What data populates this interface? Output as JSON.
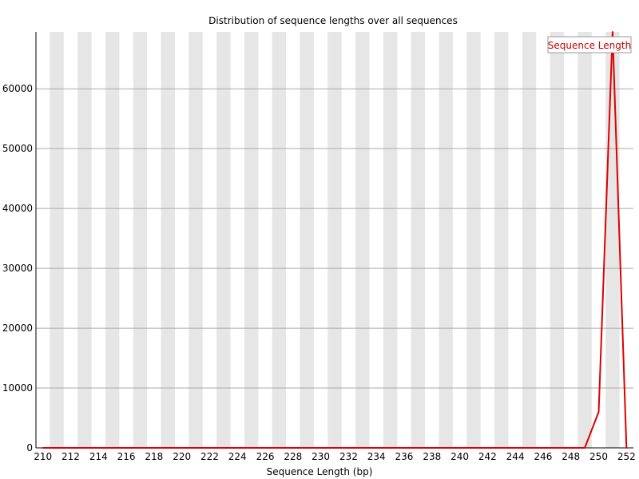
{
  "chart_data": {
    "type": "line",
    "title": "Distribution of sequence lengths over all sequences",
    "xlabel": "Sequence Length (bp)",
    "ylabel": "",
    "x": [
      210,
      211,
      212,
      213,
      214,
      215,
      216,
      217,
      218,
      219,
      220,
      221,
      222,
      223,
      224,
      225,
      226,
      227,
      228,
      229,
      230,
      231,
      232,
      233,
      234,
      235,
      236,
      237,
      238,
      239,
      240,
      241,
      242,
      243,
      244,
      245,
      246,
      247,
      248,
      249,
      250,
      251,
      252
    ],
    "series": [
      {
        "name": "Sequence Length",
        "color": "#dd0000",
        "values": [
          0,
          0,
          0,
          0,
          0,
          0,
          0,
          0,
          0,
          0,
          0,
          0,
          0,
          0,
          0,
          0,
          0,
          0,
          0,
          0,
          0,
          0,
          0,
          0,
          0,
          0,
          0,
          0,
          0,
          0,
          0,
          0,
          0,
          0,
          0,
          0,
          0,
          0,
          0,
          0,
          6000,
          69500,
          0
        ]
      }
    ],
    "xticks": [
      "210",
      "212",
      "214",
      "216",
      "218",
      "220",
      "222",
      "224",
      "226",
      "228",
      "230",
      "232",
      "234",
      "236",
      "238",
      "240",
      "242",
      "244",
      "246",
      "248",
      "250",
      "252"
    ],
    "yticks": [
      "0",
      "10000",
      "20000",
      "30000",
      "40000",
      "50000",
      "60000"
    ],
    "ylim": [
      0,
      69500
    ],
    "grid": true,
    "legend_position": "top-right",
    "colors": {
      "band": "#e6e6e6",
      "gridline": "#aaaaaa",
      "axis": "#000000"
    }
  }
}
